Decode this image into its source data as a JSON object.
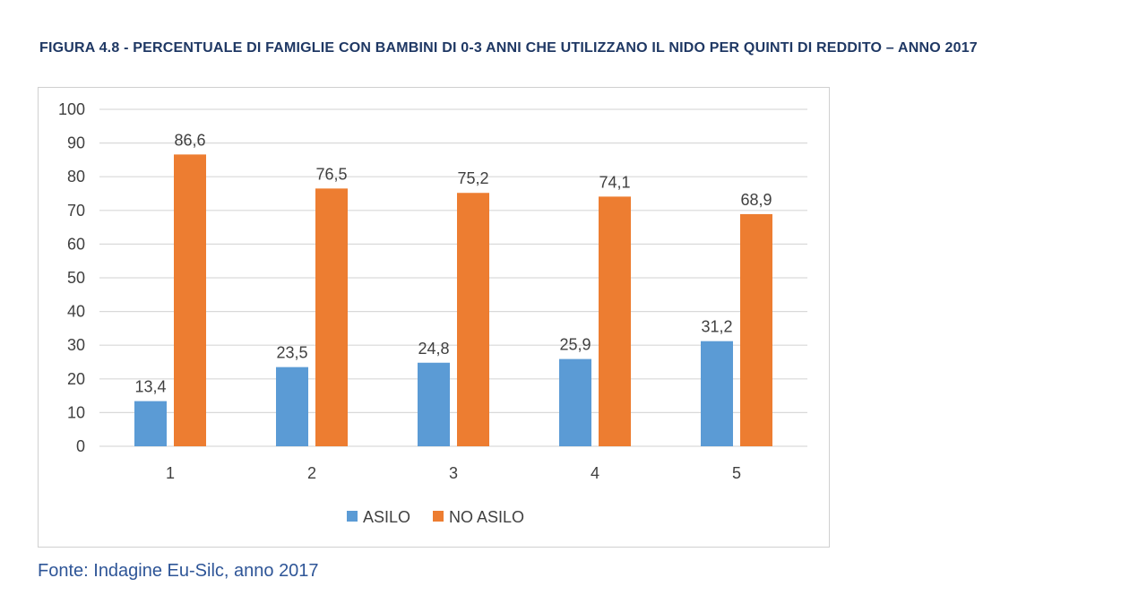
{
  "title": "FIGURA 4.8 - PERCENTUALE DI FAMIGLIE CON BAMBINI DI 0-3 ANNI CHE UTILIZZANO IL NIDO PER QUINTI DI REDDITO – ANNO 2017",
  "source": "Fonte: Indagine Eu-Silc, anno 2017",
  "chart_data": {
    "type": "bar",
    "categories": [
      "1",
      "2",
      "3",
      "4",
      "5"
    ],
    "series": [
      {
        "name": "ASILO",
        "values": [
          13.4,
          23.5,
          24.8,
          25.9,
          31.2
        ],
        "labels": [
          "13,4",
          "23,5",
          "24,8",
          "25,9",
          "31,2"
        ],
        "color": "#5b9bd5"
      },
      {
        "name": "NO ASILO",
        "values": [
          86.6,
          76.5,
          75.2,
          74.1,
          68.9
        ],
        "labels": [
          "86,6",
          "76,5",
          "75,2",
          "74,1",
          "68,9"
        ],
        "color": "#ed7d31"
      }
    ],
    "yticks": [
      "0",
      "10",
      "20",
      "30",
      "40",
      "50",
      "60",
      "70",
      "80",
      "90",
      "100"
    ],
    "ylim": [
      0,
      100
    ],
    "grid": true,
    "legend": "bottom"
  }
}
